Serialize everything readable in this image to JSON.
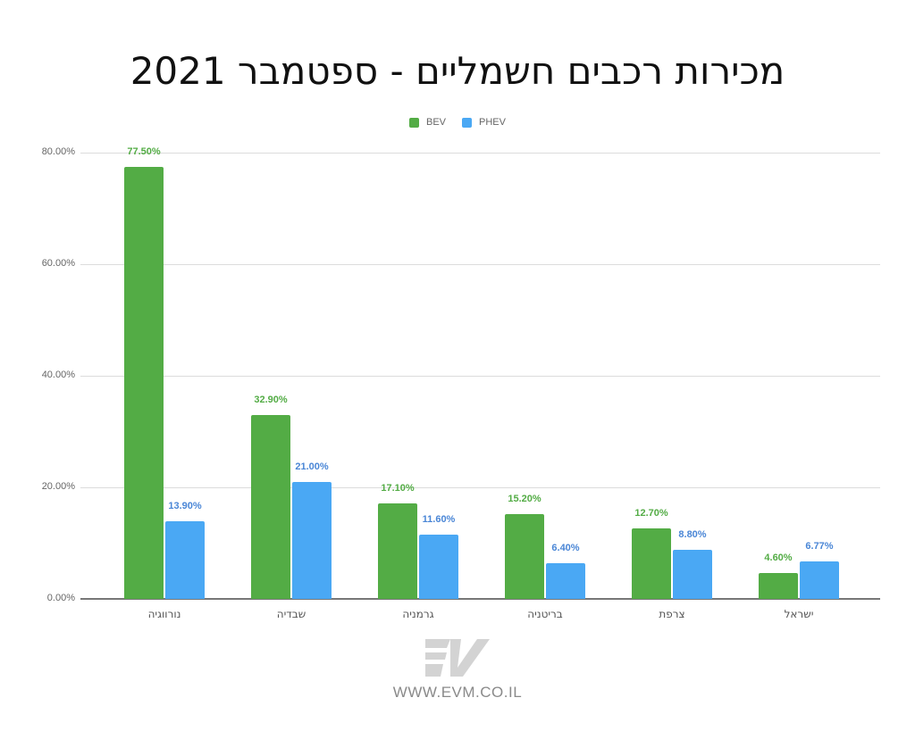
{
  "chart_data": {
    "type": "bar",
    "title": "מכירות רכבים חשמליים - ספטמבר 2021",
    "xlabel": "",
    "ylabel": "",
    "ylim": [
      0,
      80
    ],
    "y_ticks": [
      "0.00%",
      "20.00%",
      "40.00%",
      "60.00%",
      "80.00%"
    ],
    "grid": true,
    "legend_position": "top",
    "categories": [
      "נורווגיה",
      "שבדיה",
      "גרמניה",
      "בריטניה",
      "צרפת",
      "ישראל"
    ],
    "series": [
      {
        "name": "BEV",
        "color": "#53ac45",
        "values": [
          77.5,
          32.9,
          17.1,
          15.2,
          12.7,
          4.6
        ],
        "labels": [
          "77.50%",
          "32.90%",
          "17.10%",
          "15.20%",
          "12.70%",
          "4.60%"
        ]
      },
      {
        "name": "PHEV",
        "color": "#4aa8f4",
        "values": [
          13.9,
          21.0,
          11.6,
          6.4,
          8.8,
          6.77
        ],
        "labels": [
          "13.90%",
          "21.00%",
          "11.60%",
          "6.40%",
          "8.80%",
          "6.77%"
        ]
      }
    ]
  },
  "colors": {
    "bev": "#53ac45",
    "phev": "#4aa8f4",
    "bev_label": "#53ac45",
    "phev_label": "#4a86d6"
  },
  "footer": {
    "logo_icon": "ev-logo-icon",
    "website": "WWW.EVM.CO.IL"
  }
}
